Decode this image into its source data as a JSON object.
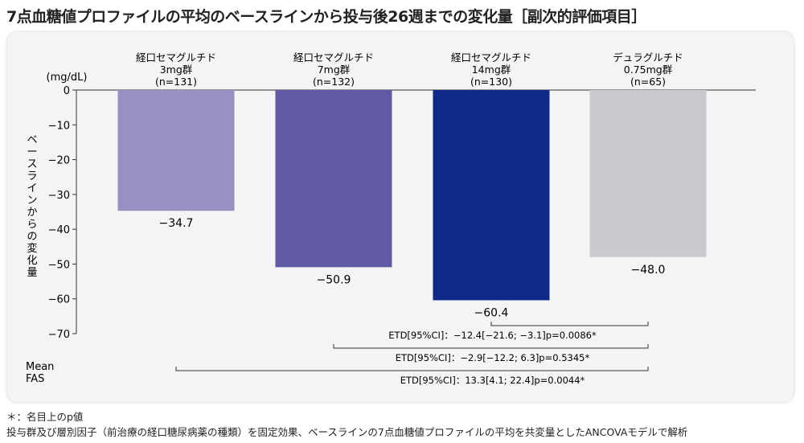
{
  "title": "7点血糖値プロファイルの平均のベースラインから投与後26週までの変化量［副次的評価項目］",
  "chart_data": {
    "type": "bar",
    "categories": [
      [
        "経口セマグルチド",
        "3mg群",
        "(n=131)"
      ],
      [
        "経口セマグルチド",
        "7mg群",
        "(n=132)"
      ],
      [
        "経口セマグルチド",
        "14mg群",
        "(n=130)"
      ],
      [
        "デュラグルチド",
        "0.75mg群",
        "(n=65)"
      ]
    ],
    "values": [
      -34.7,
      -50.9,
      -60.4,
      -48.0
    ],
    "value_labels": [
      "−34.7",
      "−50.9",
      "−60.4",
      "−48.0"
    ],
    "colors": [
      "#9791c2",
      "#5f5aa2",
      "#0c2a86",
      "#c9cacd"
    ],
    "unit": "(mg/dL)",
    "ylabel": "ベースラインからの変化量",
    "ylim": [
      -70,
      0
    ],
    "yticks": [
      0,
      -10,
      -20,
      -30,
      -40,
      -50,
      -60,
      -70
    ],
    "ytick_labels": [
      "0",
      "−10",
      "−20",
      "−30",
      "−40",
      "−50",
      "−60",
      "−70"
    ],
    "grid": false,
    "footnote_left": [
      "Mean",
      "FAS"
    ],
    "comparisons": [
      {
        "from": 2,
        "to": 3,
        "text": "ETD[95%CI]：−12.4[−21.6; −3.1]p=0.0086*"
      },
      {
        "from": 1,
        "to": 3,
        "text": "ETD[95%CI]：−2.9[−12.2; 6.3]p=0.5345*"
      },
      {
        "from": 0,
        "to": 3,
        "text": "ETD[95%CI]：13.3[4.1; 22.4]p=0.0044*"
      }
    ]
  },
  "notes": [
    "＊：名目上のp値",
    "投与群及び層別因子（前治療の経口糖尿病薬の種類）を固定効果、ベースラインの7点血糖値プロファイルの平均を共変量としたANCOVAモデルで解析"
  ]
}
